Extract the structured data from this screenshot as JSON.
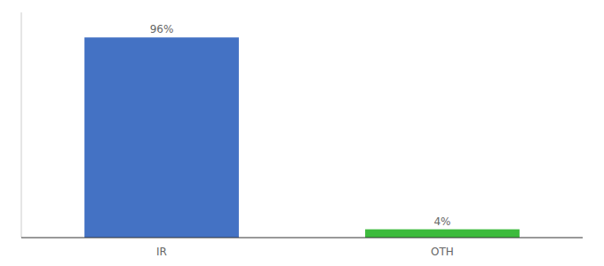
{
  "chart_data": {
    "type": "bar",
    "categories": [
      "IR",
      "OTH"
    ],
    "values": [
      96,
      4
    ],
    "value_labels": [
      "96%",
      "4%"
    ],
    "colors": [
      "#4472c4",
      "#3dbb3d"
    ],
    "ylim": [
      0,
      108
    ],
    "data_labels": true,
    "tick_labels": "x"
  }
}
